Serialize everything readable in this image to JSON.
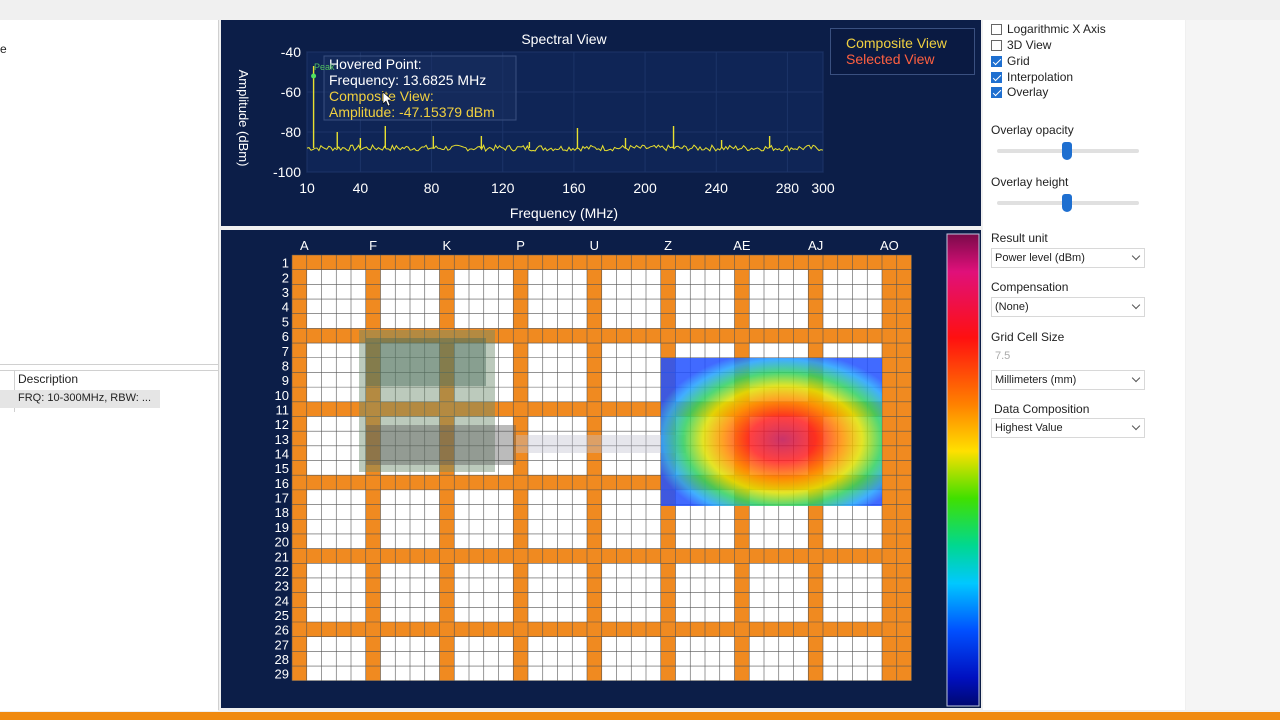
{
  "left": {
    "top_edge_char": "e",
    "table_header": "Description",
    "row_text": "FRQ: 10-300MHz, RBW: ..."
  },
  "spectral": {
    "title": "Spectral View",
    "ylabel": "Amplitude (dBm)",
    "xlabel": "Frequency (MHz)",
    "peak_tag": "Peak",
    "tooltip": {
      "line1": "Hovered Point:",
      "line2": "Frequency: 13.6825 MHz",
      "line3": "Composite View:",
      "line4": "Amplitude: -47.15379 dBm"
    },
    "legend": {
      "composite": "Composite View",
      "selected": "Selected View"
    },
    "colors": {
      "bg": "#0c1e48",
      "trace": "#e8e030",
      "composite": "#f0d040",
      "selected": "#ff6040"
    }
  },
  "chart_data": {
    "type": "line",
    "title": "Spectral View",
    "xlabel": "Frequency (MHz)",
    "ylabel": "Amplitude (dBm)",
    "xlim": [
      10,
      300
    ],
    "ylim": [
      -100,
      -40
    ],
    "xticks": [
      "10",
      "40",
      "80",
      "120",
      "160",
      "200",
      "240",
      "280",
      "300"
    ],
    "yticks": [
      "-40",
      "-60",
      "-80",
      "-100"
    ],
    "noise_floor": -88,
    "peaks": [
      {
        "x": 13.7,
        "y": -47
      },
      {
        "x": 27,
        "y": -80
      },
      {
        "x": 40,
        "y": -83
      },
      {
        "x": 54,
        "y": -77
      },
      {
        "x": 81,
        "y": -82
      },
      {
        "x": 108,
        "y": -82
      },
      {
        "x": 135,
        "y": -85
      },
      {
        "x": 162,
        "y": -78
      },
      {
        "x": 189,
        "y": -83
      },
      {
        "x": 216,
        "y": -77
      },
      {
        "x": 243,
        "y": -84
      },
      {
        "x": 270,
        "y": -82
      }
    ]
  },
  "grid": {
    "columns": [
      "A",
      "F",
      "K",
      "P",
      "U",
      "Z",
      "AE",
      "AJ",
      "AO"
    ],
    "rows": [
      "1",
      "2",
      "3",
      "4",
      "5",
      "6",
      "7",
      "8",
      "9",
      "10",
      "11",
      "12",
      "13",
      "14",
      "15",
      "16",
      "17",
      "18",
      "19",
      "20",
      "21",
      "22",
      "23",
      "24",
      "25",
      "26",
      "27",
      "28",
      "29"
    ],
    "line_color": "#f08a20"
  },
  "options": {
    "checkboxes": [
      {
        "label": "Logarithmic X Axis",
        "checked": false
      },
      {
        "label": "3D View",
        "checked": false
      },
      {
        "label": "Grid",
        "checked": true
      },
      {
        "label": "Interpolation",
        "checked": true
      },
      {
        "label": "Overlay",
        "checked": true
      }
    ],
    "overlay_opacity_label": "Overlay opacity",
    "overlay_opacity_value": 0.5,
    "overlay_height_label": "Overlay height",
    "overlay_height_value": 0.5,
    "result_unit_label": "Result unit",
    "result_unit_value": "Power level (dBm)",
    "compensation_label": "Compensation",
    "compensation_value": "(None)",
    "grid_cell_size_label": "Grid Cell Size",
    "grid_cell_size_value": "7.5",
    "units_value": "Millimeters (mm)",
    "data_composition_label": "Data Composition",
    "data_composition_value": "Highest Value"
  }
}
